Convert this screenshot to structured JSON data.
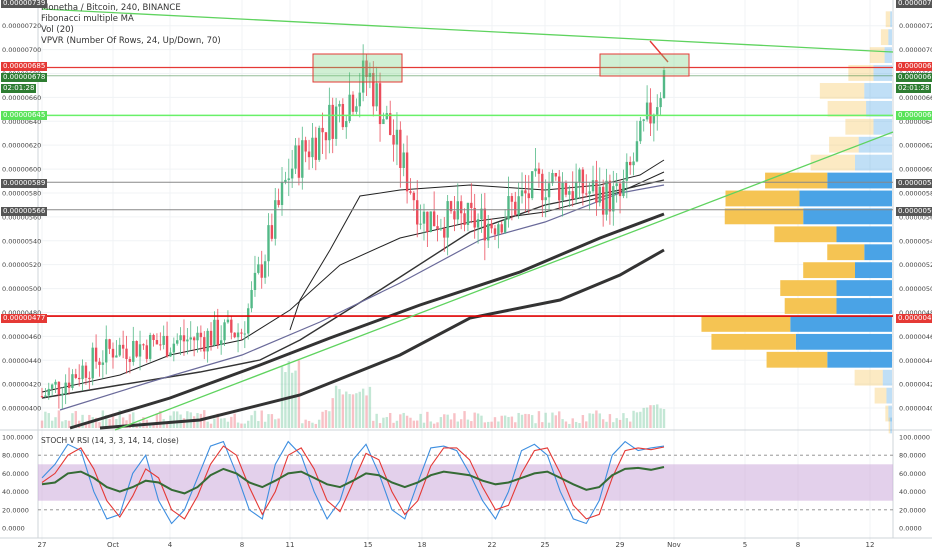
{
  "header": {
    "symbol_line": "Monetha / Bitcoin, 240, BINANCE",
    "indicator_1": "Fibonacci multiple MA",
    "indicator_2": "Vol (20)",
    "indicator_3": "VPVR (Number Of Rows, 24, Up/Down, 70)",
    "stoch_label": "STOCH V RSI (14, 3, 3, 14, 14, close)"
  },
  "price_axis": {
    "ticks": [
      "0.00000720",
      "0.00000700",
      "0.00000680",
      "0.00000660",
      "0.00000640",
      "0.00000620",
      "0.00000600",
      "0.00000580",
      "0.00000560",
      "0.00000540",
      "0.00000520",
      "0.00000500",
      "0.00000480",
      "0.00000460",
      "0.00000440",
      "0.00000420",
      "0.00000400"
    ],
    "top_cut": "0.00000739",
    "left_tags": {
      "top": "0.00000739",
      "r685": "0.00000685",
      "price": "0.00000678",
      "countdown": "02:01:28",
      "green645": "0.00000645",
      "g589": "0.00000589",
      "g566": "0.00000566",
      "r477": "0.00000477"
    },
    "right_tags": {
      "top": "0.00000739",
      "r685": "0.00000685",
      "price": "0.00000678",
      "countdown": "02:01:28",
      "green645": "0.00000645",
      "g589": "0.00000589",
      "g566": "0.00000566",
      "r477": "0.00000477"
    }
  },
  "stoch_axis": {
    "ticks": [
      "100.0000",
      "80.0000",
      "60.0000",
      "40.0000",
      "20.0000",
      "0.0000"
    ]
  },
  "time_axis": {
    "labels": [
      "27",
      "Oct",
      "4",
      "8",
      "11",
      "15",
      "18",
      "22",
      "25",
      "29",
      "Nov",
      "5",
      "8",
      "12"
    ]
  },
  "colors": {
    "up": "#53b987",
    "down": "#eb4d5c",
    "trend": "#5fd35f",
    "hline_red": "#e53935",
    "hline_green": "#69f069",
    "hline_gray": "#888888",
    "stoch_k": "#3d8ee0",
    "stoch_d": "#e53935",
    "stoch_rsi": "#356b35",
    "band": "#c8a2d8",
    "vp_up": "#4aa3e6",
    "vp_down": "#f5c453"
  },
  "chart_data": [
    {
      "type": "line",
      "title": "Monetha / Bitcoin, 240, BINANCE",
      "price_range": [
        3.9e-06,
        7.39e-06
      ],
      "x": [
        "27",
        "Oct",
        "4",
        "8",
        "11",
        "15",
        "18",
        "22",
        "25",
        "29",
        "Nov"
      ],
      "series": [
        {
          "name": "close",
          "values": [
            4.1e-06,
            4.5e-06,
            4.55e-06,
            4.65e-06,
            6e-06,
            6.8e-06,
            5.6e-06,
            5.55e-06,
            5.9e-06,
            5.75e-06,
            6.78e-06
          ]
        }
      ],
      "horizontal_levels": [
        6.85e-06,
        6.78e-06,
        6.45e-06,
        5.89e-06,
        5.66e-06,
        4.77e-06
      ],
      "highlight_boxes": [
        [
          6.7e-06,
          6.92e-06
        ],
        [
          6.8e-06,
          6.97e-06
        ]
      ]
    },
    {
      "type": "bar",
      "title": "VPVR (Number Of Rows, 24, Up/Down, 70)",
      "rows": 24,
      "volume_profile": [
        {
          "price": 7.25e-06,
          "up": 0.03,
          "down": 0.01
        },
        {
          "price": 7.1e-06,
          "up": 0.05,
          "down": 0.02
        },
        {
          "price": 6.95e-06,
          "up": 0.1,
          "down": 0.04
        },
        {
          "price": 6.8e-06,
          "up": 0.17,
          "down": 0.1
        },
        {
          "price": 6.65e-06,
          "up": 0.3,
          "down": 0.15
        },
        {
          "price": 6.5e-06,
          "up": 0.26,
          "down": 0.14
        },
        {
          "price": 6.35e-06,
          "up": 0.19,
          "down": 0.1
        },
        {
          "price": 6.2e-06,
          "up": 0.2,
          "down": 0.18
        },
        {
          "price": 6.05e-06,
          "up": 0.3,
          "down": 0.2
        },
        {
          "price": 5.9e-06,
          "up": 0.42,
          "down": 0.35
        },
        {
          "price": 5.75e-06,
          "up": 0.5,
          "down": 0.5
        },
        {
          "price": 5.6e-06,
          "up": 0.53,
          "down": 0.48
        },
        {
          "price": 5.45e-06,
          "up": 0.42,
          "down": 0.3
        },
        {
          "price": 5.3e-06,
          "up": 0.25,
          "down": 0.15
        },
        {
          "price": 5.15e-06,
          "up": 0.35,
          "down": 0.2
        },
        {
          "price": 5e-06,
          "up": 0.38,
          "down": 0.3
        },
        {
          "price": 4.85e-06,
          "up": 0.35,
          "down": 0.3
        },
        {
          "price": 4.7e-06,
          "up": 0.6,
          "down": 0.55
        },
        {
          "price": 4.55e-06,
          "up": 0.57,
          "down": 0.52
        },
        {
          "price": 4.4e-06,
          "up": 0.41,
          "down": 0.35
        },
        {
          "price": 4.25e-06,
          "up": 0.19,
          "down": 0.05
        },
        {
          "price": 4.1e-06,
          "up": 0.08,
          "down": 0.03
        },
        {
          "price": 3.95e-06,
          "up": 0.02,
          "down": 0.02
        },
        {
          "price": 3.85e-06,
          "up": 0.01,
          "down": 0.01
        }
      ]
    },
    {
      "type": "line",
      "title": "STOCH V RSI (14, 3, 3, 14, 14, close)",
      "ylim": [
        0,
        100
      ],
      "band": [
        30,
        70
      ],
      "levels": [
        80,
        20
      ],
      "series": [
        {
          "name": "K",
          "values": [
            55,
            70,
            92,
            85,
            40,
            10,
            15,
            60,
            80,
            30,
            5,
            20,
            55,
            90,
            95,
            60,
            20,
            10,
            70,
            95,
            80,
            40,
            10,
            30,
            75,
            92,
            60,
            20,
            10,
            50,
            88,
            90,
            85,
            60,
            30,
            10,
            40,
            85,
            92,
            80,
            40,
            10,
            5,
            30,
            80,
            95,
            85,
            88,
            90
          ]
        },
        {
          "name": "D",
          "values": [
            50,
            60,
            80,
            88,
            65,
            30,
            12,
            35,
            65,
            55,
            20,
            10,
            35,
            70,
            90,
            80,
            45,
            15,
            40,
            80,
            88,
            65,
            30,
            18,
            50,
            82,
            75,
            40,
            15,
            30,
            68,
            88,
            88,
            75,
            45,
            20,
            25,
            60,
            85,
            88,
            60,
            25,
            10,
            15,
            55,
            85,
            88,
            86,
            89
          ]
        },
        {
          "name": "RSI",
          "values": [
            48,
            50,
            60,
            62,
            55,
            45,
            40,
            45,
            52,
            50,
            42,
            38,
            45,
            58,
            65,
            60,
            50,
            45,
            52,
            60,
            62,
            55,
            48,
            45,
            52,
            60,
            58,
            50,
            45,
            50,
            58,
            62,
            60,
            58,
            52,
            48,
            50,
            55,
            60,
            62,
            55,
            48,
            42,
            45,
            58,
            65,
            66,
            64,
            67
          ]
        }
      ]
    }
  ]
}
